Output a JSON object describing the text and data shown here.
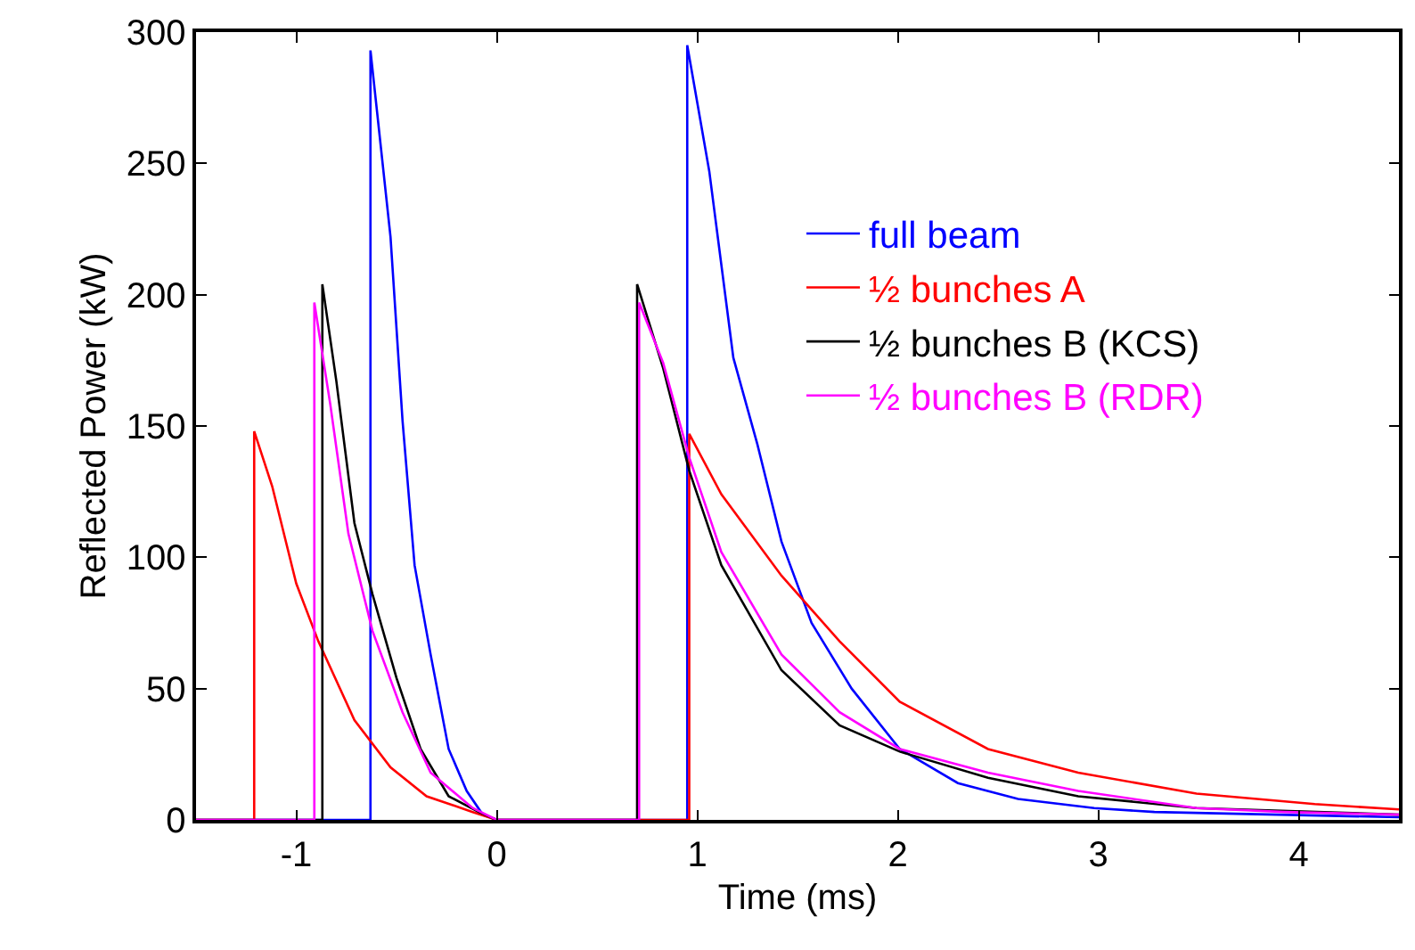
{
  "chart_data": {
    "type": "line",
    "xlabel": "Time (ms)",
    "ylabel": "Reflected Power (kW)",
    "xlim": [
      -1.5,
      4.5
    ],
    "ylim": [
      0,
      300
    ],
    "xticks": [
      -1,
      0,
      1,
      2,
      3,
      4
    ],
    "yticks": [
      0,
      50,
      100,
      150,
      200,
      250,
      300
    ],
    "legend": "top right",
    "marker": "none",
    "line_style": "solid",
    "series": [
      {
        "name": "full beam",
        "color": "#0000ff",
        "x": [
          -1.5,
          -0.63,
          -0.63,
          -0.53,
          -0.47,
          -0.41,
          -0.33,
          -0.24,
          -0.15,
          -0.07,
          0,
          0.95,
          0.95,
          1.06,
          1.18,
          1.3,
          1.42,
          1.57,
          1.77,
          2.01,
          2.3,
          2.6,
          2.98,
          3.28,
          4.5
        ],
        "values": [
          0,
          0,
          293,
          222,
          152,
          97,
          63,
          27,
          11,
          2,
          0,
          0,
          295,
          247,
          176,
          143,
          106,
          75,
          50,
          27,
          14,
          8,
          4.5,
          3,
          1
        ]
      },
      {
        "name": "½ bunches A",
        "color": "#ff0000",
        "x": [
          -1.5,
          -1.21,
          -1.21,
          -1.12,
          -1.0,
          -0.89,
          -0.71,
          -0.53,
          -0.35,
          -0.12,
          0,
          0.96,
          0.96,
          1.12,
          1.42,
          1.71,
          2.01,
          2.45,
          2.9,
          3.49,
          4.08,
          4.5
        ],
        "values": [
          0,
          0,
          148,
          127,
          90,
          68,
          38,
          20,
          9,
          3,
          0,
          0,
          147,
          124,
          93,
          68,
          45,
          27,
          18,
          10,
          6,
          4
        ]
      },
      {
        "name": "½ bunches B (KCS)",
        "color": "#000000",
        "x": [
          -1.5,
          -0.87,
          -0.87,
          -0.8,
          -0.71,
          -0.62,
          -0.5,
          -0.38,
          -0.24,
          -0.09,
          0,
          0.7,
          0.7,
          0.83,
          0.96,
          1.12,
          1.42,
          1.71,
          2.01,
          2.45,
          2.9,
          3.49,
          4.5
        ],
        "values": [
          0,
          0,
          204,
          167,
          113,
          86,
          54,
          27,
          9,
          3,
          0,
          0,
          204,
          172,
          133,
          97,
          57,
          36,
          26,
          16,
          9,
          4.5,
          2
        ]
      },
      {
        "name": "½ bunches B (RDR)",
        "color": "#ff00ff",
        "x": [
          -1.5,
          -0.91,
          -0.91,
          -0.83,
          -0.74,
          -0.62,
          -0.47,
          -0.33,
          -0.12,
          0,
          0.71,
          0.71,
          0.83,
          0.96,
          1.12,
          1.42,
          1.71,
          2.01,
          2.45,
          2.9,
          3.49,
          3.93,
          4.5
        ],
        "values": [
          0,
          0,
          197,
          158,
          109,
          72,
          41,
          18,
          4.5,
          0,
          0,
          197,
          174,
          138,
          102,
          63,
          41,
          27,
          18,
          11,
          4.5,
          3,
          2
        ]
      }
    ]
  }
}
